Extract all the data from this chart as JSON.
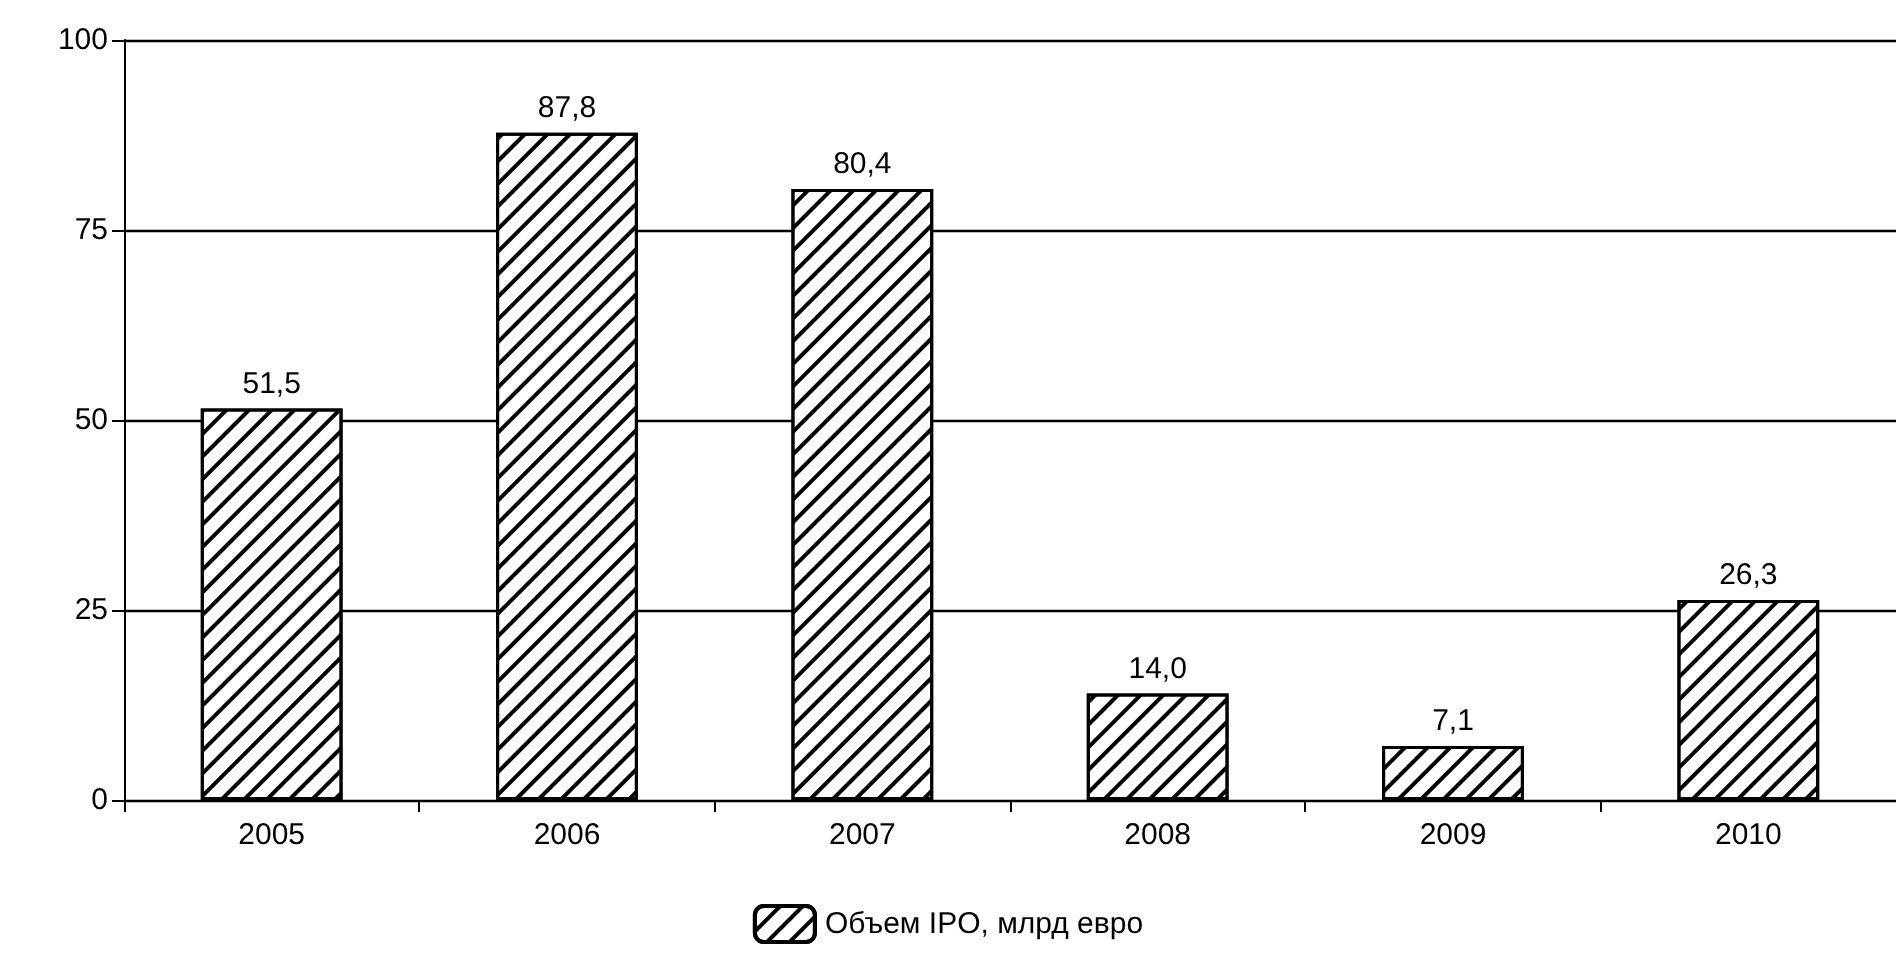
{
  "chart_data": {
    "type": "bar",
    "categories": [
      "2005",
      "2006",
      "2007",
      "2008",
      "2009",
      "2010"
    ],
    "series": [
      {
        "name": "Объем IPO, млрд евро",
        "color": "#000000",
        "values": [
          51.5,
          87.8,
          80.4,
          14.0,
          7.1,
          26.3
        ],
        "value_labels": [
          "51,5",
          "87,8",
          "80,4",
          "14,0",
          "7,1",
          "26,3"
        ]
      }
    ],
    "ylim": [
      0,
      100
    ],
    "yticks": [
      0,
      25,
      50,
      75,
      100
    ],
    "grid": "y",
    "legend": "bottom"
  }
}
